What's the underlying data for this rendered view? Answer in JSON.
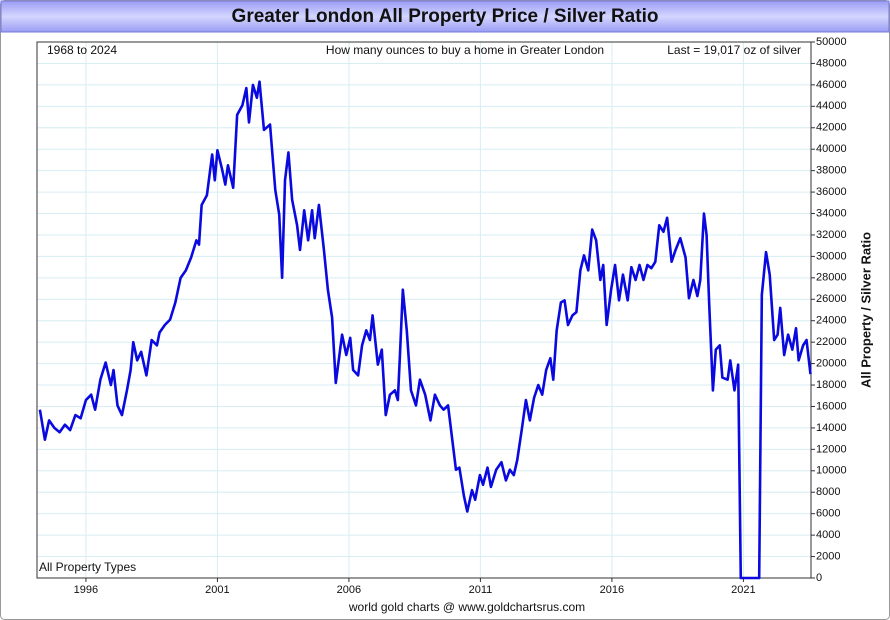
{
  "chart_data": {
    "type": "line",
    "title": "Greater London All Property Price / Silver Ratio",
    "annotations": [
      "1968 to 2024",
      "How many ounces to buy a home in Greater London",
      "Last = 19,017 oz of silver",
      "All Property Types"
    ],
    "source": "world gold charts @ www.goldchartsrus.com",
    "y_label": "All Property / Silver Ratio",
    "color": "#0a0ae0",
    "grid": true,
    "xlim": [
      1994.14,
      2023.57
    ],
    "xticks": [
      1996,
      2001,
      2006,
      2011,
      2016,
      2021
    ],
    "ylim": [
      0,
      50000
    ],
    "yticks": [
      0,
      2000,
      4000,
      6000,
      8000,
      10000,
      12000,
      14000,
      16000,
      18000,
      20000,
      22000,
      24000,
      26000,
      28000,
      30000,
      32000,
      34000,
      36000,
      38000,
      40000,
      42000,
      44000,
      46000,
      48000,
      50000
    ],
    "x": [
      1994.25,
      1994.44,
      1994.6,
      1994.8,
      1995.0,
      1995.2,
      1995.4,
      1995.6,
      1995.8,
      1996.0,
      1996.2,
      1996.35,
      1996.55,
      1996.75,
      1996.95,
      1997.05,
      1997.2,
      1997.37,
      1997.56,
      1997.7,
      1997.8,
      1997.95,
      1998.1,
      1998.3,
      1998.5,
      1998.7,
      1998.8,
      1999.0,
      1999.2,
      1999.4,
      1999.6,
      1999.8,
      2000.0,
      2000.2,
      2000.3,
      2000.4,
      2000.6,
      2000.8,
      2000.9,
      2001.0,
      2001.17,
      2001.3,
      2001.4,
      2001.6,
      2001.75,
      2001.95,
      2002.1,
      2002.2,
      2002.35,
      2002.5,
      2002.6,
      2002.77,
      2003.0,
      2003.2,
      2003.35,
      2003.46,
      2003.57,
      2003.7,
      2003.84,
      2004.03,
      2004.14,
      2004.3,
      2004.45,
      2004.6,
      2004.7,
      2004.86,
      2005.05,
      2005.2,
      2005.36,
      2005.5,
      2005.74,
      2005.9,
      2006.05,
      2006.16,
      2006.35,
      2006.5,
      2006.66,
      2006.8,
      2006.9,
      2007.1,
      2007.25,
      2007.4,
      2007.56,
      2007.75,
      2007.86,
      2007.94,
      2008.05,
      2008.2,
      2008.36,
      2008.55,
      2008.7,
      2008.9,
      2009.1,
      2009.27,
      2009.46,
      2009.6,
      2009.77,
      2009.93,
      2010.07,
      2010.2,
      2010.37,
      2010.5,
      2010.68,
      2010.8,
      2010.98,
      2011.1,
      2011.27,
      2011.4,
      2011.6,
      2011.8,
      2011.97,
      2012.12,
      2012.27,
      2012.4,
      2012.57,
      2012.73,
      2012.88,
      2013.04,
      2013.2,
      2013.35,
      2013.5,
      2013.66,
      2013.77,
      2013.9,
      2014.06,
      2014.2,
      2014.33,
      2014.5,
      2014.65,
      2014.8,
      2014.94,
      2015.1,
      2015.25,
      2015.4,
      2015.56,
      2015.67,
      2015.8,
      2015.97,
      2016.12,
      2016.27,
      2016.42,
      2016.6,
      2016.74,
      2016.9,
      2017.05,
      2017.2,
      2017.35,
      2017.5,
      2017.65,
      2017.8,
      2017.96,
      2018.1,
      2018.27,
      2018.42,
      2018.6,
      2018.8,
      2018.93,
      2019.1,
      2019.25,
      2019.36,
      2019.5,
      2019.6,
      2019.7,
      2019.84,
      2019.95,
      2020.1,
      2020.2,
      2020.4,
      2020.5,
      2020.66,
      2020.8,
      2020.9,
      2021.6,
      2021.7,
      2021.86,
      2022.0,
      2022.17,
      2022.3,
      2022.4,
      2022.55,
      2022.7,
      2022.86,
      2023.0,
      2023.1,
      2023.27,
      2023.4,
      2023.55
    ],
    "values": [
      15700,
      12900,
      14700,
      14000,
      13600,
      14300,
      13800,
      15200,
      14900,
      16600,
      17100,
      15700,
      18500,
      20100,
      18000,
      19400,
      16100,
      15200,
      17500,
      19400,
      22000,
      20300,
      21100,
      18900,
      22200,
      21700,
      22900,
      23600,
      24100,
      25700,
      28000,
      28700,
      29900,
      31500,
      31100,
      34800,
      35700,
      39500,
      37100,
      39900,
      38200,
      36700,
      38500,
      36400,
      43200,
      44100,
      45700,
      42500,
      46000,
      44800,
      46300,
      41800,
      42300,
      36200,
      33900,
      28000,
      37100,
      39700,
      35300,
      32900,
      30600,
      34300,
      31500,
      34300,
      31700,
      34800,
      30600,
      26900,
      24300,
      18200,
      22700,
      20800,
      22400,
      19400,
      18900,
      21700,
      23100,
      22200,
      24500,
      19900,
      21300,
      15200,
      17100,
      17500,
      16600,
      20800,
      26900,
      23100,
      17500,
      16100,
      18500,
      17100,
      14700,
      17100,
      16100,
      15700,
      16100,
      12900,
      10100,
      10300,
      7700,
      6200,
      8200,
      7300,
      9600,
      8700,
      10300,
      8500,
      10100,
      10800,
      9100,
      10100,
      9600,
      11000,
      13800,
      16600,
      14700,
      16800,
      18000,
      17100,
      19400,
      20500,
      18500,
      23100,
      25700,
      25900,
      23600,
      24500,
      24800,
      28700,
      30100,
      28700,
      32500,
      31500,
      27800,
      29200,
      23600,
      26900,
      29200,
      25900,
      28300,
      25900,
      29000,
      27800,
      29200,
      27800,
      29200,
      28900,
      29500,
      32900,
      32300,
      33600,
      29500,
      30600,
      31700,
      29900,
      26100,
      27800,
      26300,
      27800,
      34000,
      32000,
      25500,
      17500,
      21300,
      21700,
      18700,
      18500,
      20300,
      17500,
      19900,
      0,
      0,
      26400,
      30400,
      28300,
      22200,
      22700,
      25200,
      20800,
      22700,
      21300,
      23300,
      20300,
      21700,
      22200,
      19017
    ]
  }
}
